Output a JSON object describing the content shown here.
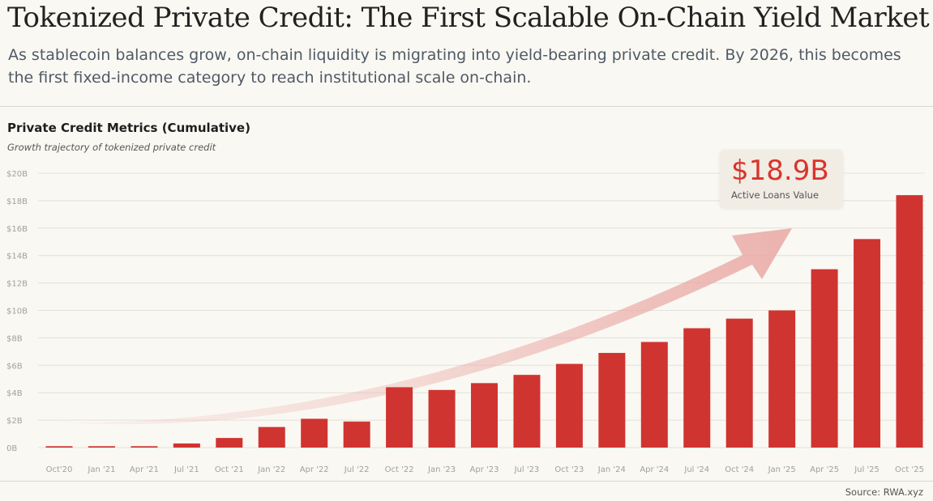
{
  "header": {
    "title": "Tokenized Private Credit: The First Scalable On-Chain Yield Market",
    "subtitle": "As stablecoin balances grow, on-chain liquidity is migrating into yield-bearing private credit. By 2026, this becomes the first fixed-income category to reach institutional scale on-chain."
  },
  "callout": {
    "value": "$18.9B",
    "label": "Active Loans Value"
  },
  "footer": {
    "source": "Source: RWA.xyz"
  },
  "colors": {
    "bar": "#d03430",
    "accent_text": "#d9342b",
    "arrow": "#e9a6a2",
    "grid": "#e3e0d9",
    "background": "#faf8f3"
  },
  "chart_data": {
    "type": "bar",
    "title": "Private Credit Metrics (Cumulative)",
    "subtitle": "Growth trajectory of tokenized private credit",
    "xlabel": "",
    "ylabel": "",
    "ylim": [
      0,
      20
    ],
    "y_ticks": [
      {
        "value": 0,
        "label": "0B"
      },
      {
        "value": 2,
        "label": "$2B"
      },
      {
        "value": 4,
        "label": "$4B"
      },
      {
        "value": 6,
        "label": "$6B"
      },
      {
        "value": 8,
        "label": "$8B"
      },
      {
        "value": 10,
        "label": "$10B"
      },
      {
        "value": 12,
        "label": "$12B"
      },
      {
        "value": 14,
        "label": "$14B"
      },
      {
        "value": 16,
        "label": "$16B"
      },
      {
        "value": 18,
        "label": "$18B"
      },
      {
        "value": 20,
        "label": "$20B"
      }
    ],
    "grid": true,
    "categories": [
      "Oct'20",
      "Jan '21",
      "Apr '21",
      "Jul '21",
      "Oct '21",
      "Jan '22",
      "Apr '22",
      "Jul '22",
      "Oct '22",
      "Jan '23",
      "Apr '23",
      "Jul '23",
      "Oct '23",
      "Jan '24",
      "Apr '24",
      "Jul '24",
      "Oct '24",
      "Jan '25",
      "Apr '25",
      "Jul '25",
      "Oct '25"
    ],
    "values": [
      0.1,
      0.1,
      0.1,
      0.3,
      0.7,
      1.5,
      2.1,
      1.9,
      4.4,
      4.2,
      4.7,
      5.3,
      6.1,
      6.9,
      7.7,
      8.7,
      9.4,
      10.0,
      13.0,
      15.2,
      18.4
    ],
    "annotations": [
      "Trend arrow"
    ]
  }
}
